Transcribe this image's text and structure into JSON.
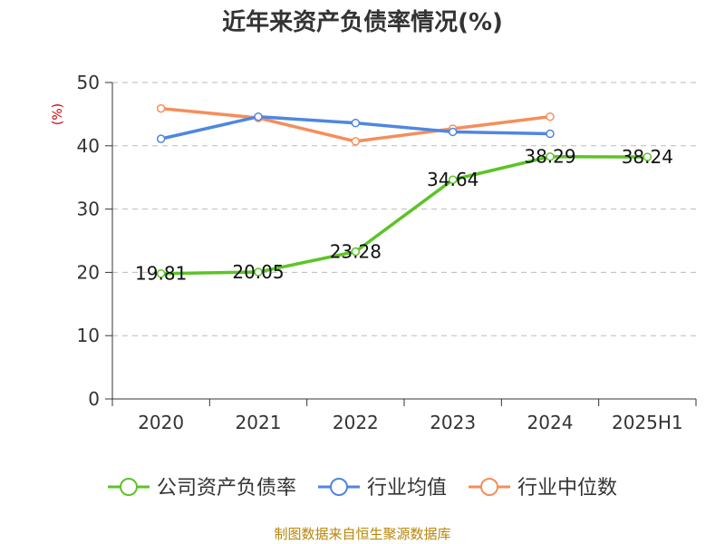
{
  "chart_data": {
    "type": "line",
    "title": "近年来资产负债率情况(%)",
    "ylabel": "(%)",
    "categories": [
      "2020",
      "2021",
      "2022",
      "2023",
      "2024",
      "2025H1"
    ],
    "ylim": [
      0,
      50
    ],
    "yticks": [
      0,
      10,
      20,
      30,
      40,
      50
    ],
    "grid": true,
    "legend_position": "bottom",
    "series": [
      {
        "name": "公司资产负债率",
        "color": "#5cc427",
        "values": [
          19.81,
          20.05,
          23.28,
          34.64,
          38.29,
          38.24
        ],
        "labels": [
          "19.81",
          "20.05",
          "23.28",
          "34.64",
          "38.29",
          "38.24"
        ]
      },
      {
        "name": "行业均值",
        "color": "#4f86e0",
        "values": [
          41.1,
          44.6,
          43.6,
          42.2,
          41.9,
          null
        ]
      },
      {
        "name": "行业中位数",
        "color": "#f58e5b",
        "values": [
          45.9,
          44.4,
          40.7,
          42.7,
          44.6,
          null
        ]
      }
    ],
    "source": "制图数据来自恒生聚源数据库"
  }
}
